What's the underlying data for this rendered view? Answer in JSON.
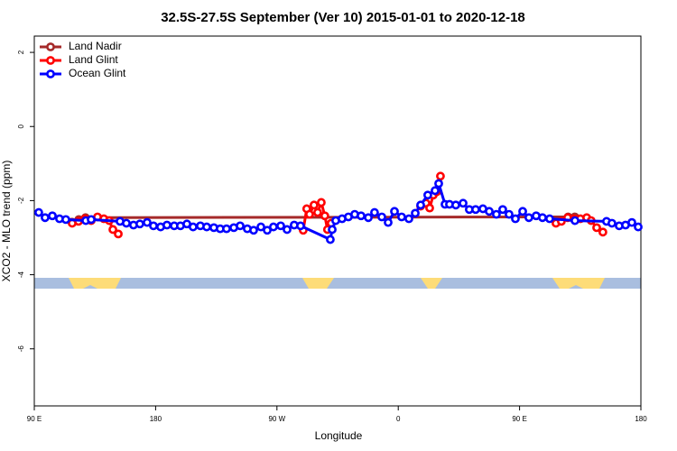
{
  "chart_data": {
    "type": "line",
    "title": "32.5S-27.5S September (Ver 10)   2015-01-01 to 2020-12-18",
    "xlabel": "Longitude",
    "ylabel": "XCO2 - MLO trend (ppm)",
    "xlim": [
      90,
      540
    ],
    "ylim": [
      -7.54,
      2.44
    ],
    "xticks": [
      {
        "value": 90,
        "label": "90 E"
      },
      180,
      {
        "value": 270,
        "label": "90 W"
      },
      {
        "value": 360,
        "label": "0"
      },
      {
        "value": 450,
        "label": "90 E"
      },
      {
        "value": 540,
        "label": "180"
      }
    ],
    "yticks": [
      2,
      0,
      -2,
      -4,
      -6
    ],
    "legend": "top-left",
    "series": [
      {
        "name": "Land Nadir",
        "color": "#a52a2a",
        "x": [
          118,
          123,
          128,
          486,
          491
        ],
        "values": [
          -2.58,
          -2.51,
          -2.46,
          -2.44,
          -2.44
        ]
      },
      {
        "name": "Land Glint",
        "color": "#ff0000",
        "x": [
          118.1,
          122.8,
          127.5,
          132.2,
          136.9,
          141.6,
          145.6,
          148.3,
          152.3,
          220,
          289.5,
          292.1,
          294.2,
          297.5,
          300.2,
          302.9,
          305.5,
          307.5,
          310.2,
          340,
          376.6,
          380.6,
          383.3,
          386,
          388.6,
          391.3,
          430,
          477,
          481,
          485.7,
          490.4,
          495.1,
          499.8,
          503.1,
          507.2,
          511.8
        ],
        "values": [
          -2.61,
          -2.56,
          -2.49,
          -2.54,
          -2.44,
          -2.49,
          -2.54,
          -2.78,
          -2.9,
          null,
          -2.8,
          -2.22,
          -2.37,
          -2.12,
          -2.32,
          -2.05,
          -2.41,
          -2.78,
          -2.61,
          null,
          -2.15,
          -2.07,
          -2.2,
          -1.85,
          -1.76,
          -1.34,
          null,
          -2.61,
          -2.56,
          -2.46,
          -2.49,
          -2.49,
          -2.46,
          -2.54,
          -2.73,
          -2.85
        ]
      },
      {
        "name": "Ocean Glint",
        "color": "#0000ff",
        "x": [
          93.3,
          98,
          103.4,
          108.7,
          113.4,
          128.2,
          132.2,
          153.6,
          158.3,
          163.6,
          168.3,
          173.7,
          178.4,
          183.7,
          188.4,
          193.8,
          198.4,
          203.2,
          207.8,
          213.2,
          217.9,
          223.2,
          227.9,
          232.6,
          238,
          242.7,
          248,
          252.7,
          258.1,
          262.8,
          267.4,
          272.8,
          277.5,
          282.8,
          287.5,
          309.6,
          311,
          313.6,
          318.3,
          323,
          327.7,
          332.4,
          337.8,
          342.4,
          347.8,
          352.5,
          357.2,
          362.5,
          367.9,
          372.6,
          376.6,
          381.9,
          387.3,
          390,
          394.7,
          398,
          402.7,
          408.1,
          412.7,
          417.4,
          422.8,
          427.5,
          432.8,
          437.5,
          442.2,
          446.9,
          452.3,
          456.9,
          462.3,
          467,
          472.3,
          491.1,
          514.5,
          518.5,
          523.9,
          528.6,
          533.3,
          538
        ],
        "values": [
          -2.32,
          -2.46,
          -2.41,
          -2.49,
          -2.51,
          -2.54,
          -2.51,
          -2.56,
          -2.61,
          -2.66,
          -2.63,
          -2.59,
          -2.68,
          -2.71,
          -2.66,
          -2.68,
          -2.68,
          -2.63,
          -2.71,
          -2.68,
          -2.71,
          -2.73,
          -2.76,
          -2.76,
          -2.73,
          -2.68,
          -2.76,
          -2.8,
          -2.71,
          -2.8,
          -2.71,
          -2.68,
          -2.78,
          -2.66,
          -2.68,
          -3.05,
          -2.78,
          -2.54,
          -2.49,
          -2.44,
          -2.37,
          -2.41,
          -2.46,
          -2.32,
          -2.44,
          -2.59,
          -2.29,
          -2.44,
          -2.49,
          -2.34,
          -2.12,
          -1.85,
          -1.73,
          -1.54,
          -2.1,
          -2.1,
          -2.12,
          -2.07,
          -2.24,
          -2.24,
          -2.22,
          -2.29,
          -2.37,
          -2.24,
          -2.37,
          -2.49,
          -2.29,
          -2.46,
          -2.41,
          -2.46,
          -2.49,
          -2.54,
          -2.56,
          -2.61,
          -2.68,
          -2.66,
          -2.59,
          -2.71
        ]
      }
    ]
  }
}
